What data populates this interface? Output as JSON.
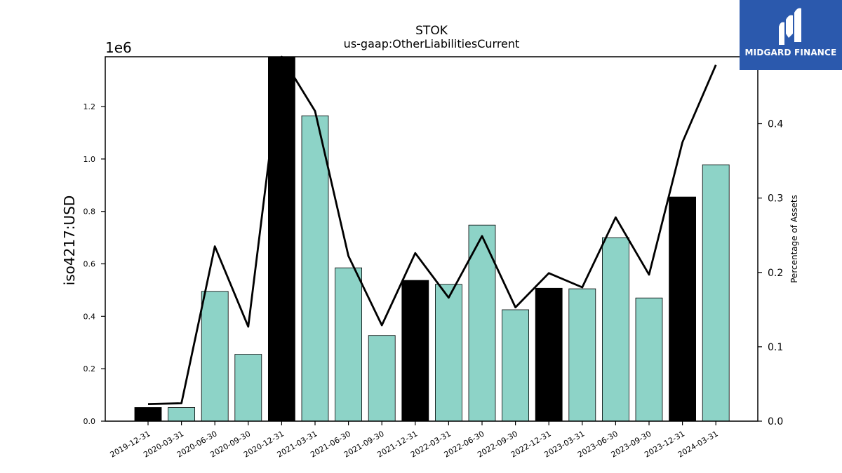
{
  "chart_data": {
    "type": "bar",
    "title": "STOK",
    "subtitle": "us-gaap:OtherLiabilitiesCurrent",
    "ylabel": "iso4217:USD",
    "y2label": "Percentage of Assets",
    "yscale_label": "1e6",
    "categories": [
      "2019-12-31",
      "2020-03-31",
      "2020-06-30",
      "2020-09-30",
      "2020-12-31",
      "2021-03-31",
      "2021-06-30",
      "2021-09-30",
      "2021-12-31",
      "2022-03-31",
      "2022-06-30",
      "2022-09-30",
      "2022-12-31",
      "2023-03-31",
      "2023-06-30",
      "2023-09-30",
      "2023-12-31",
      "2024-03-31"
    ],
    "values": [
      52000,
      52000,
      495000,
      255000,
      1390000,
      1165000,
      585000,
      327000,
      537000,
      522000,
      748000,
      425000,
      507000,
      505000,
      700000,
      470000,
      855000,
      978000
    ],
    "bar_colors": [
      "#000000",
      "#8dd3c7",
      "#8dd3c7",
      "#8dd3c7",
      "#000000",
      "#8dd3c7",
      "#8dd3c7",
      "#8dd3c7",
      "#000000",
      "#8dd3c7",
      "#8dd3c7",
      "#8dd3c7",
      "#000000",
      "#8dd3c7",
      "#8dd3c7",
      "#8dd3c7",
      "#000000",
      "#8dd3c7"
    ],
    "pct_assets": [
      0.023,
      0.024,
      0.235,
      0.127,
      0.49,
      0.417,
      0.222,
      0.129,
      0.226,
      0.166,
      0.249,
      0.153,
      0.199,
      0.18,
      0.274,
      0.197,
      0.375,
      0.479
    ],
    "ylim": [
      0,
      1390000
    ],
    "y2lim": [
      0,
      0.49
    ],
    "yticks": [
      0,
      200000,
      400000,
      600000,
      800000,
      1000000,
      1200000
    ],
    "ytick_labels": [
      "0.0",
      "0.2",
      "0.4",
      "0.6",
      "0.8",
      "1.0",
      "1.2"
    ],
    "y2ticks": [
      0,
      0.1,
      0.2,
      0.3,
      0.4
    ],
    "y2tick_labels": [
      "0.0",
      "0.1",
      "0.2",
      "0.3",
      "0.4"
    ],
    "grid": false,
    "line_color": "#000000"
  },
  "logo": {
    "text": "MIDGARD FINANCE",
    "background": "#2b59ad"
  }
}
